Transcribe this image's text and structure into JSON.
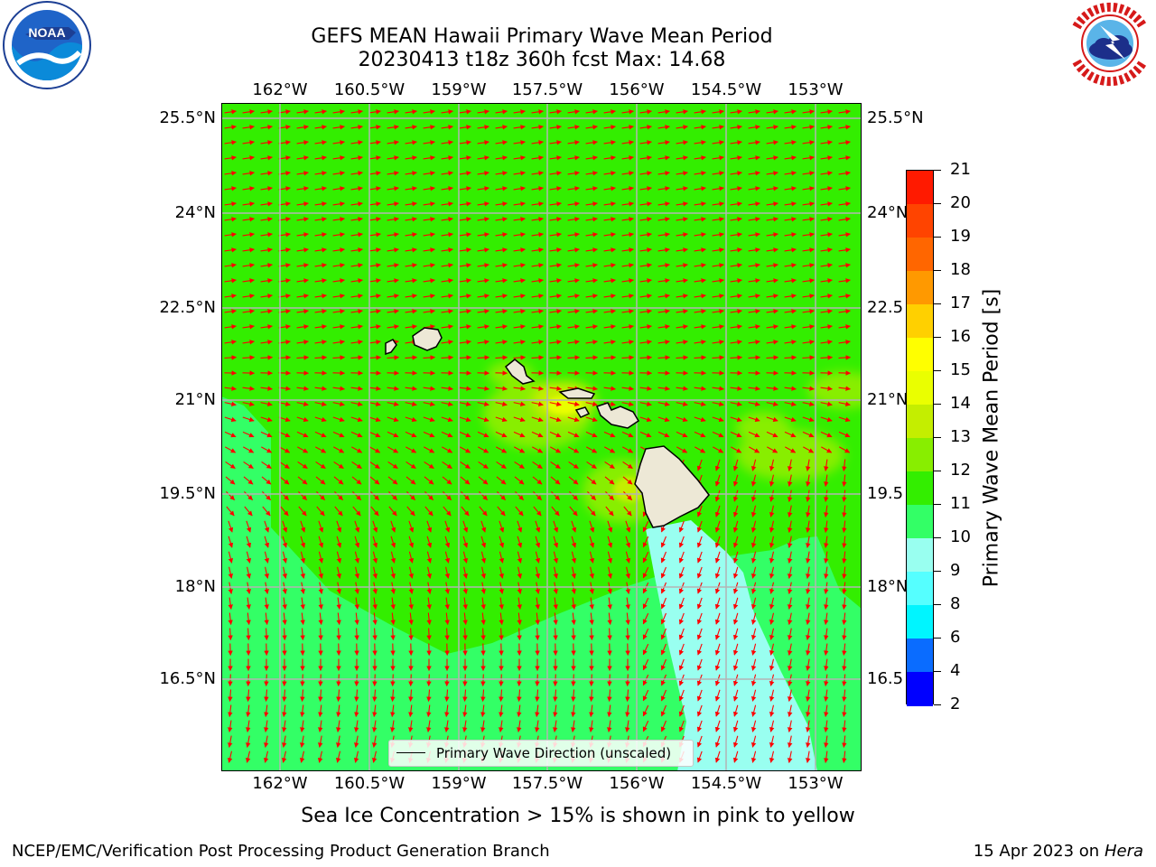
{
  "title": {
    "line1": "GEFS MEAN Hawaii Primary Wave Mean Period",
    "line2": "20230413 t18z 360h fcst   Max: 14.68"
  },
  "logos": {
    "left": {
      "text": "NOAA",
      "ring_text": "NATIONAL OCEANIC AND ATMOSPHERIC ADMINISTRATION · U.S. DEPARTMENT OF COMMERCE"
    },
    "right": {
      "ring_text": "NATIONAL WEATHER SERVICE"
    }
  },
  "map": {
    "lon_labels": [
      "162°W",
      "160.5°W",
      "159°W",
      "157.5°W",
      "156°W",
      "154.5°W",
      "153°W"
    ],
    "lat_labels_left": [
      "25.5°N",
      "24°N",
      "22.5°N",
      "21°N",
      "19.5°N",
      "18°N",
      "16.5°N"
    ],
    "lat_labels_right": [
      "25.5°N",
      "24°N",
      "22.5",
      "21°N",
      "19.5",
      "18°N",
      "16.5"
    ],
    "legend_label": "Primary Wave Direction (unscaled)",
    "colors": {
      "land": "#ede8d6",
      "arrow": "#ff0000",
      "grid": "#b4b4b4"
    }
  },
  "colorbar": {
    "label": "Primary Wave Mean Period [s]",
    "ticks": [
      "21",
      "20",
      "19",
      "18",
      "17",
      "16",
      "15",
      "14",
      "13",
      "12",
      "11",
      "10",
      "9",
      "8",
      "6",
      "4",
      "2"
    ],
    "colors_bottom_to_top": [
      "#0000ff",
      "#0a6cff",
      "#00f5ff",
      "#55ffff",
      "#99fff0",
      "#33ff66",
      "#33ee00",
      "#88ee00",
      "#c4ee00",
      "#eaff00",
      "#ffff00",
      "#ffd000",
      "#ff9900",
      "#ff6600",
      "#ff4400",
      "#ff1a00",
      "#ff0000"
    ]
  },
  "caption": "Sea Ice Concentration > 15% is shown in pink to yellow",
  "footer": {
    "left": "NCEP/EMC/Verification Post Processing Product Generation Branch",
    "right_date": "15 Apr 2023 on ",
    "right_host": "Hera"
  }
}
